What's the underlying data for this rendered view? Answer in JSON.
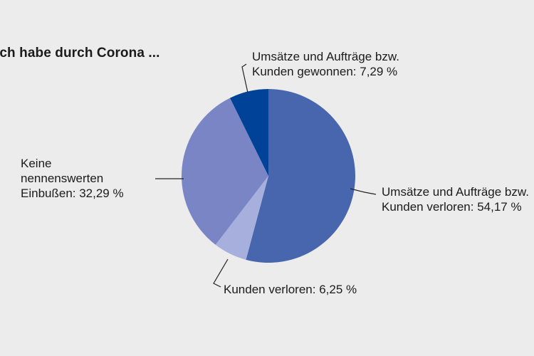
{
  "chart_data": {
    "type": "pie",
    "title": "Ich habe durch Corona ...",
    "slices": [
      {
        "label_lines": [
          "Umsätze und Aufträge bzw.",
          "Kunden verloren: 54,17 %"
        ],
        "value": 54.17,
        "color": "#4866ae"
      },
      {
        "label_lines": [
          "Kunden verloren: 6,25 %"
        ],
        "value": 6.25,
        "color": "#a7afdc"
      },
      {
        "label_lines": [
          "Keine",
          "nennenswerten",
          "Einbußen: 32,29 %"
        ],
        "value": 32.29,
        "color": "#7985c4"
      },
      {
        "label_lines": [
          "Umsätze und Aufträge bzw.",
          "Kunden gewonnen: 7,29 %"
        ],
        "value": 7.29,
        "color": "#004297"
      }
    ]
  }
}
